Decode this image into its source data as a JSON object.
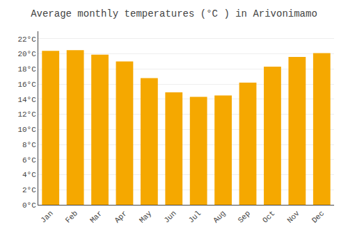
{
  "chart_data": {
    "type": "bar",
    "title": "Average monthly temperatures (°C ) in Arivonimamo",
    "categories": [
      "Jan",
      "Feb",
      "Mar",
      "Apr",
      "May",
      "Jun",
      "Jul",
      "Aug",
      "Sep",
      "Oct",
      "Nov",
      "Dec"
    ],
    "values": [
      20.4,
      20.5,
      19.9,
      19.0,
      16.8,
      14.9,
      14.3,
      14.5,
      16.2,
      18.3,
      19.6,
      20.1
    ],
    "color": "#F5A800",
    "ylim": [
      0,
      23
    ],
    "yticks": [
      {
        "value": 0,
        "label": "0°C"
      },
      {
        "value": 2,
        "label": "2°C"
      },
      {
        "value": 4,
        "label": "4°C"
      },
      {
        "value": 6,
        "label": "6°C"
      },
      {
        "value": 8,
        "label": "8°C"
      },
      {
        "value": 10,
        "label": "10°C"
      },
      {
        "value": 12,
        "label": "12°C"
      },
      {
        "value": 14,
        "label": "14°C"
      },
      {
        "value": 16,
        "label": "16°C"
      },
      {
        "value": 18,
        "label": "18°C"
      },
      {
        "value": 20,
        "label": "20°C"
      },
      {
        "value": 22,
        "label": "22°C"
      }
    ],
    "grid": true
  }
}
